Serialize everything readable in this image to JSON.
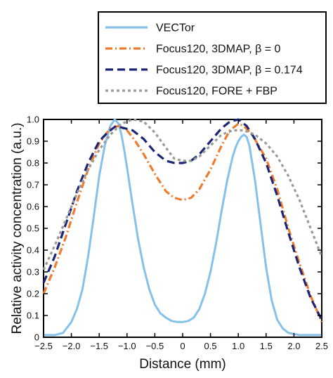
{
  "chart_data": {
    "type": "line",
    "title": "",
    "xlabel": "Distance (mm)",
    "ylabel": "Relative activity concentration (a.u.)",
    "xlim": [
      -2.5,
      2.5
    ],
    "ylim": [
      0,
      1.0
    ],
    "xticks": [
      -2.5,
      -2.0,
      -1.5,
      -1.0,
      -0.5,
      0,
      0.5,
      1.0,
      1.5,
      2.0,
      2.5
    ],
    "xtick_labels": [
      "−2.5",
      "−2.0",
      "−1.5",
      "−1.0",
      "−0.5",
      "0",
      "0.5",
      "1.0",
      "1.5",
      "2.0",
      "2.5"
    ],
    "yticks": [
      0,
      0.1,
      0.2,
      0.3,
      0.4,
      0.5,
      0.6,
      0.7,
      0.8,
      0.9,
      1.0
    ],
    "ytick_labels": [
      "0",
      "0.1",
      "0.2",
      "0.3",
      "0.4",
      "0.5",
      "0.6",
      "0.7",
      "0.8",
      "0.9",
      "1.0"
    ],
    "grid": false,
    "legend_position": "above-plot-right",
    "series": [
      {
        "name": "VECTor",
        "color": "#86c1ea",
        "style": "solid",
        "x": [
          -2.5,
          -2.3,
          -2.15,
          -2.0,
          -1.9,
          -1.8,
          -1.7,
          -1.6,
          -1.5,
          -1.4,
          -1.3,
          -1.22,
          -1.15,
          -1.1,
          -1.05,
          -1.0,
          -0.9,
          -0.8,
          -0.7,
          -0.6,
          -0.5,
          -0.4,
          -0.3,
          -0.2,
          -0.1,
          0.0,
          0.1,
          0.2,
          0.3,
          0.4,
          0.5,
          0.6,
          0.7,
          0.8,
          0.9,
          0.95,
          1.0,
          1.05,
          1.1,
          1.15,
          1.2,
          1.3,
          1.4,
          1.5,
          1.6,
          1.7,
          1.8,
          1.9,
          2.0,
          2.1,
          2.2,
          2.3,
          2.5
        ],
        "y": [
          0.01,
          0.01,
          0.02,
          0.07,
          0.13,
          0.22,
          0.37,
          0.55,
          0.74,
          0.88,
          0.97,
          1.0,
          0.98,
          0.93,
          0.86,
          0.78,
          0.61,
          0.45,
          0.32,
          0.22,
          0.15,
          0.11,
          0.09,
          0.075,
          0.07,
          0.07,
          0.075,
          0.09,
          0.13,
          0.2,
          0.3,
          0.43,
          0.58,
          0.72,
          0.83,
          0.87,
          0.9,
          0.92,
          0.93,
          0.92,
          0.88,
          0.72,
          0.52,
          0.32,
          0.17,
          0.08,
          0.04,
          0.02,
          0.015,
          0.01,
          0.01,
          0.01,
          0.01
        ]
      },
      {
        "name": "Focus120, 3DMAP, β = 0",
        "color": "#ee7c2e",
        "style": "dashdot",
        "x": [
          -2.5,
          -2.3,
          -2.1,
          -1.9,
          -1.7,
          -1.5,
          -1.3,
          -1.15,
          -1.0,
          -0.85,
          -0.7,
          -0.5,
          -0.3,
          -0.15,
          0.0,
          0.15,
          0.3,
          0.5,
          0.7,
          0.85,
          1.0,
          1.1,
          1.25,
          1.5,
          1.7,
          1.9,
          2.1,
          2.3,
          2.5
        ],
        "y": [
          0.2,
          0.32,
          0.46,
          0.62,
          0.77,
          0.89,
          0.96,
          0.97,
          0.95,
          0.9,
          0.84,
          0.75,
          0.67,
          0.64,
          0.63,
          0.64,
          0.68,
          0.77,
          0.88,
          0.95,
          0.98,
          0.97,
          0.93,
          0.82,
          0.68,
          0.5,
          0.34,
          0.19,
          0.07
        ]
      },
      {
        "name": "Focus120, 3DMAP, β = 0.174",
        "color": "#1c2577",
        "style": "dashed",
        "x": [
          -2.5,
          -2.3,
          -2.1,
          -1.9,
          -1.7,
          -1.5,
          -1.35,
          -1.2,
          -1.05,
          -0.9,
          -0.7,
          -0.5,
          -0.3,
          -0.15,
          0.0,
          0.15,
          0.3,
          0.5,
          0.7,
          0.85,
          1.0,
          1.15,
          1.3,
          1.5,
          1.7,
          1.9,
          2.1,
          2.3,
          2.5
        ],
        "y": [
          0.25,
          0.37,
          0.52,
          0.67,
          0.8,
          0.9,
          0.94,
          0.97,
          0.96,
          0.95,
          0.91,
          0.85,
          0.81,
          0.8,
          0.8,
          0.81,
          0.84,
          0.9,
          0.96,
          0.99,
          1.0,
          0.97,
          0.91,
          0.8,
          0.65,
          0.48,
          0.32,
          0.18,
          0.08
        ]
      },
      {
        "name": "Focus120, FORE + FBP",
        "color": "#9a9a9a",
        "style": "dotted",
        "x": [
          -2.5,
          -2.3,
          -2.1,
          -1.9,
          -1.7,
          -1.5,
          -1.3,
          -1.1,
          -0.9,
          -0.7,
          -0.5,
          -0.3,
          -0.15,
          0.0,
          0.15,
          0.3,
          0.5,
          0.7,
          0.9,
          1.1,
          1.3,
          1.5,
          1.7,
          1.9,
          2.1,
          2.3,
          2.5
        ],
        "y": [
          0.31,
          0.42,
          0.54,
          0.66,
          0.77,
          0.86,
          0.93,
          0.98,
          1.0,
          0.99,
          0.94,
          0.87,
          0.82,
          0.81,
          0.81,
          0.83,
          0.88,
          0.93,
          0.95,
          0.95,
          0.93,
          0.89,
          0.83,
          0.74,
          0.63,
          0.5,
          0.37
        ]
      }
    ]
  }
}
